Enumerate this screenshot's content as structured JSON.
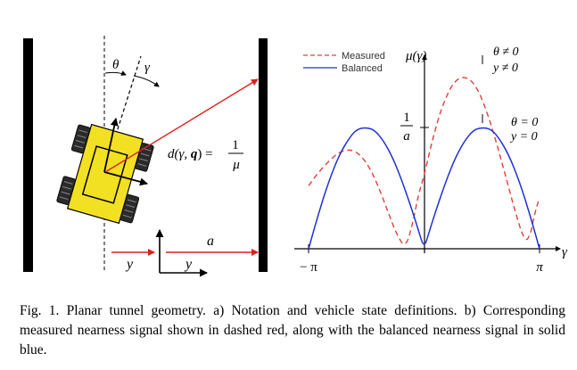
{
  "left_panel": {
    "theta_label": "θ",
    "gamma_label": "γ",
    "distance_eq_lhs": "d(γ, ",
    "distance_eq_q": "q",
    "distance_eq_close": ") =",
    "distance_eq_num": "1",
    "distance_eq_den": "μ",
    "a_label": "a",
    "y_label_left": "y",
    "y_label_right": "y"
  },
  "right_panel": {
    "ylabel": "μ(γ)",
    "xlabel": "γ",
    "tick_left": "− π",
    "tick_right": "π",
    "tick_y_num": "1",
    "tick_y_den": "a",
    "annot_measured_1": "θ ≠ 0",
    "annot_measured_2": "y ≠ 0",
    "annot_balanced_1": "θ = 0",
    "annot_balanced_2": "y = 0"
  },
  "chart_data": {
    "type": "line",
    "xlim": [
      -3.1416,
      3.1416
    ],
    "x_ticks": [
      "− π",
      "π"
    ],
    "y_ticks": [
      "1/a"
    ],
    "xlabel": "γ",
    "ylabel": "μ(γ)",
    "legend_position": "top-left",
    "series": [
      {
        "name": "Measured",
        "style": "dashed",
        "color": "#e0403a",
        "x": [
          -3.14,
          -2.9,
          -2.6,
          -2.3,
          -2.0,
          -1.75,
          -1.5,
          -1.25,
          -1.0,
          -0.75,
          -0.5,
          -0.3,
          -0.15,
          0.0,
          0.15,
          0.3,
          0.5,
          0.75,
          1.0,
          1.25,
          1.45,
          1.65,
          1.9,
          2.2,
          2.5,
          2.75,
          2.9,
          3.0,
          3.14
        ],
        "y": [
          0.52,
          0.62,
          0.72,
          0.8,
          0.82,
          0.78,
          0.68,
          0.52,
          0.32,
          0.12,
          0.0,
          0.22,
          0.45,
          0.6,
          0.8,
          0.98,
          1.18,
          1.35,
          1.42,
          1.4,
          1.32,
          1.18,
          0.95,
          0.62,
          0.28,
          0.05,
          0.12,
          0.28,
          0.42
        ]
      },
      {
        "name": "Balanced",
        "style": "solid",
        "color": "#1f2fd6",
        "x": [
          -3.14,
          -2.9,
          -2.6,
          -2.3,
          -2.0,
          -1.8,
          -1.57,
          -1.35,
          -1.1,
          -0.85,
          -0.6,
          -0.35,
          -0.15,
          0.0,
          0.15,
          0.35,
          0.6,
          0.85,
          1.1,
          1.35,
          1.57,
          1.8,
          2.0,
          2.3,
          2.6,
          2.9,
          3.14
        ],
        "y": [
          0.0,
          0.26,
          0.55,
          0.78,
          0.93,
          0.99,
          1.0,
          0.98,
          0.89,
          0.75,
          0.56,
          0.34,
          0.15,
          0.0,
          0.15,
          0.34,
          0.56,
          0.75,
          0.89,
          0.98,
          1.0,
          0.99,
          0.93,
          0.78,
          0.55,
          0.26,
          0.0
        ]
      }
    ]
  },
  "caption": "Fig. 1.  Planar tunnel geometry. a) Notation and vehicle state definitions. b) Corresponding measured nearness signal shown in dashed red, along with the balanced nearness signal in solid blue."
}
